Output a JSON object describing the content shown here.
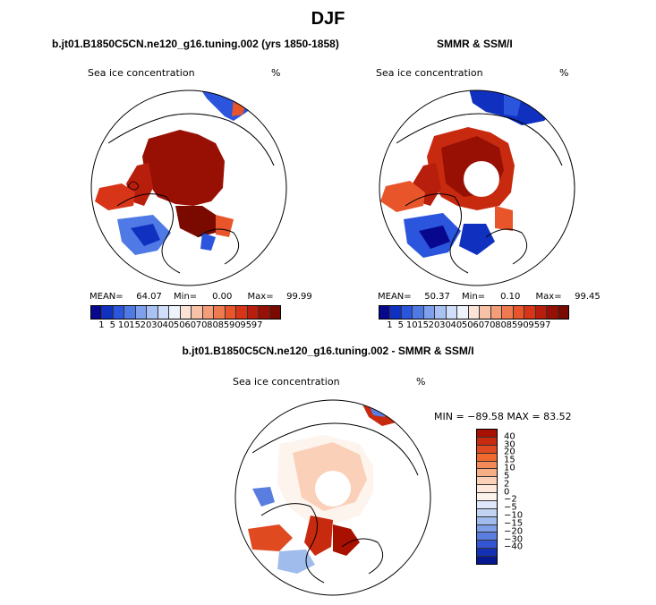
{
  "figure": {
    "title": "DJF"
  },
  "panels": {
    "model": {
      "title": "b.jt01.B1850C5CN.ne120_g16.tuning.002 (yrs 1850-1858)",
      "variable": "Sea ice concentration",
      "units": "%",
      "mean_label": "MEAN=",
      "mean": "64.07",
      "min_label": "Min=",
      "min": "0.00",
      "max_label": "Max=",
      "max": "99.99"
    },
    "obs": {
      "title": "SMMR & SSM/I",
      "variable": "Sea ice concentration",
      "units": "%",
      "mean_label": "MEAN=",
      "mean": "50.37",
      "min_label": "Min=",
      "min": "0.10",
      "max_label": "Max=",
      "max": "99.45"
    },
    "diff": {
      "title": "b.jt01.B1850C5CN.ne120_g16.tuning.002 - SMMR & SSM/I",
      "variable": "Sea ice concentration",
      "units": "%",
      "minmax_text": "MIN = −89.58  MAX =  83.52"
    }
  },
  "colorbars": {
    "concentration": {
      "colors": [
        "#08088f",
        "#1030c0",
        "#2a55dc",
        "#4f7ae6",
        "#7ea0ee",
        "#a8c2f4",
        "#d0defa",
        "#eef2fb",
        "#fbe3d8",
        "#f8c2a8",
        "#f59c78",
        "#f07a50",
        "#e8552a",
        "#d83418",
        "#b81e0c",
        "#981004",
        "#7a0a00"
      ],
      "labels": [
        "1",
        "5",
        "10",
        "15",
        "20",
        "30",
        "40",
        "50",
        "60",
        "70",
        "80",
        "85",
        "90",
        "95",
        "97"
      ]
    },
    "difference": {
      "colors": [
        "#a81000",
        "#c82a10",
        "#e04a20",
        "#f06a30",
        "#f58a58",
        "#f8ae84",
        "#fbd0b8",
        "#fde8dc",
        "#fdf4ee",
        "#dfe8f8",
        "#c2d4f2",
        "#a0bcec",
        "#7e9ee6",
        "#5a7ee0",
        "#3456d2",
        "#1430b4",
        "#061890"
      ],
      "labels": [
        "40",
        "30",
        "20",
        "15",
        "10",
        "5",
        "2",
        "0",
        "−2",
        "−5",
        "−10",
        "−15",
        "−20",
        "−30",
        "−40"
      ]
    }
  }
}
